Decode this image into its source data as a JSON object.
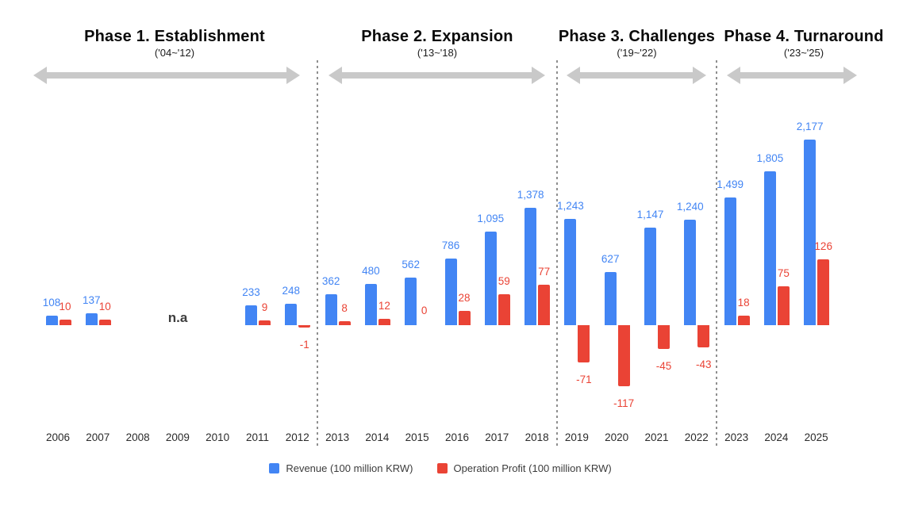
{
  "chart_data": {
    "type": "bar",
    "title": "",
    "categories": [
      "2006",
      "2007",
      "2008",
      "2009",
      "2010",
      "2011",
      "2012",
      "2013",
      "2014",
      "2015",
      "2016",
      "2017",
      "2018",
      "2019",
      "2020",
      "2021",
      "2022",
      "2023",
      "2024",
      "2025"
    ],
    "series": [
      {
        "name": "Revenue (100 million KRW)",
        "color": "#4285F4",
        "values": [
          108,
          137,
          null,
          null,
          null,
          233,
          248,
          362,
          480,
          562,
          786,
          1095,
          1378,
          1243,
          627,
          1147,
          1240,
          1499,
          1805,
          2177
        ]
      },
      {
        "name": "Operation Profit (100 million KRW)",
        "color": "#EA4335",
        "values": [
          10,
          10,
          null,
          null,
          null,
          9,
          -1,
          8,
          12,
          0,
          28,
          59,
          77,
          -71,
          -117,
          -45,
          -43,
          18,
          75,
          126
        ]
      }
    ],
    "value_labels": {
      "revenue": [
        "108",
        "137",
        "",
        "",
        "",
        "233",
        "248",
        "362",
        "480",
        "562",
        "786",
        "1,095",
        "1,378",
        "1,243",
        "627",
        "1,147",
        "1,240",
        "1,499",
        "1,805",
        "2,177"
      ],
      "profit": [
        "10",
        "10",
        "",
        "",
        "",
        "9",
        "-1",
        "8",
        "12",
        "0",
        "28",
        "59",
        "77",
        "-71",
        "-117",
        "-45",
        "-43",
        "18",
        "75",
        "126"
      ]
    },
    "na_annotation": {
      "text": "n.a",
      "applies_to": [
        "2008",
        "2009",
        "2010"
      ]
    },
    "xlabel": "",
    "ylabel": "",
    "grid": false,
    "legend_position": "bottom",
    "axis_baseline": 0
  },
  "phases": [
    {
      "title": "Phase 1. Establishment",
      "range": "('04~'12)",
      "start_year": "2006",
      "end_year": "2012"
    },
    {
      "title": "Phase 2. Expansion",
      "range": "('13~'18)",
      "start_year": "2013",
      "end_year": "2018"
    },
    {
      "title": "Phase 3. Challenges",
      "range": "('19~'22)",
      "start_year": "2019",
      "end_year": "2022"
    },
    {
      "title": "Phase 4. Turnaround",
      "range": "('23~'25)",
      "start_year": "2023",
      "end_year": "2025"
    }
  ],
  "legend": [
    {
      "label": "Revenue (100 million KRW)",
      "color": "#4285F4"
    },
    {
      "label": "Operation Profit (100 million KRW)",
      "color": "#EA4335"
    }
  ],
  "colors": {
    "revenue": "#4285F4",
    "profit": "#EA4335",
    "arrow": "#c9c9c9",
    "separator": "#8f8f8f",
    "background": "#ffffff"
  }
}
